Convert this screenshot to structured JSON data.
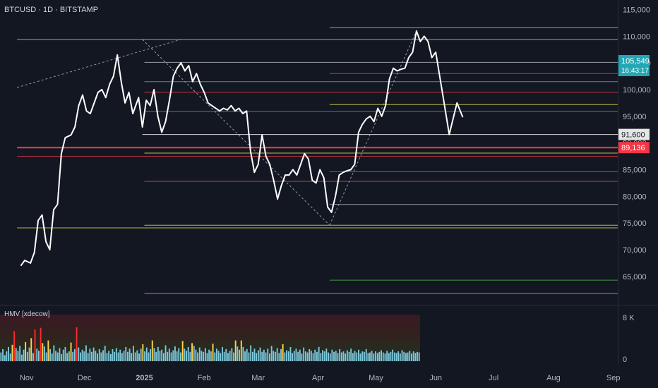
{
  "header": {
    "title": "BTCUSD · 1D · BITSTAMP"
  },
  "indicator": {
    "title": "HMV [xdecow]",
    "ticks": [
      "8 K",
      "0"
    ]
  },
  "colors": {
    "background": "#131722",
    "price_line": "#ffffff",
    "axis_text": "#b2b5be",
    "current_badge": "#22a7b5",
    "red": "#f23645",
    "teal": "#26a69a",
    "blue": "#4aa3d8",
    "yellow": "#d6dc4a",
    "green": "#4caf50",
    "purple": "#c77dff",
    "grey": "#9598a1",
    "vol_base": "#7fc7d9",
    "vol_yellow": "#ffd54f",
    "vol_red": "#ff2a2a"
  },
  "chart_data": {
    "type": "line",
    "title": "BTCUSD · 1D · BITSTAMP",
    "x_axis": {
      "ticks": [
        "Nov",
        "Dec",
        "2025",
        "Feb",
        "Mar",
        "Apr",
        "May",
        "Jun",
        "Jul",
        "Aug",
        "Sep"
      ]
    },
    "y_axis": {
      "ticks": [
        "115,000",
        "110,000",
        "105,000",
        "100,000",
        "95,000",
        "90,000",
        "85,000",
        "80,000",
        "75,000",
        "70,000",
        "65,000"
      ],
      "ylim": [
        61500,
        116200
      ]
    },
    "series": [
      {
        "values": [
          {
            "x": "2024-10-29",
            "y": 67000
          },
          {
            "x": "2024-10-31",
            "y": 68000
          },
          {
            "x": "2024-11-03",
            "y": 67500
          },
          {
            "x": "2024-11-05",
            "y": 69500
          },
          {
            "x": "2024-11-07",
            "y": 75500
          },
          {
            "x": "2024-11-09",
            "y": 76500
          },
          {
            "x": "2024-11-11",
            "y": 71500
          },
          {
            "x": "2024-11-13",
            "y": 70000
          },
          {
            "x": "2024-11-15",
            "y": 77500
          },
          {
            "x": "2024-11-17",
            "y": 78500
          },
          {
            "x": "2024-11-19",
            "y": 88000
          },
          {
            "x": "2024-11-21",
            "y": 91000
          },
          {
            "x": "2024-11-24",
            "y": 91500
          },
          {
            "x": "2024-11-26",
            "y": 93000
          },
          {
            "x": "2024-11-28",
            "y": 97000
          },
          {
            "x": "2024-11-30",
            "y": 99000
          },
          {
            "x": "2024-12-02",
            "y": 96000
          },
          {
            "x": "2024-12-04",
            "y": 95500
          },
          {
            "x": "2024-12-06",
            "y": 97500
          },
          {
            "x": "2024-12-08",
            "y": 99500
          },
          {
            "x": "2024-12-10",
            "y": 100000
          },
          {
            "x": "2024-12-12",
            "y": 98500
          },
          {
            "x": "2024-12-14",
            "y": 101000
          },
          {
            "x": "2024-12-16",
            "y": 102500
          },
          {
            "x": "2024-12-18",
            "y": 106500
          },
          {
            "x": "2024-12-20",
            "y": 101500
          },
          {
            "x": "2024-12-22",
            "y": 97500
          },
          {
            "x": "2024-12-24",
            "y": 99500
          },
          {
            "x": "2024-12-26",
            "y": 95500
          },
          {
            "x": "2024-12-29",
            "y": 98500
          },
          {
            "x": "2024-12-31",
            "y": 93000
          },
          {
            "x": "2025-01-02",
            "y": 98000
          },
          {
            "x": "2025-01-04",
            "y": 97000
          },
          {
            "x": "2025-01-06",
            "y": 100000
          },
          {
            "x": "2025-01-08",
            "y": 95000
          },
          {
            "x": "2025-01-10",
            "y": 92000
          },
          {
            "x": "2025-01-12",
            "y": 94000
          },
          {
            "x": "2025-01-14",
            "y": 98000
          },
          {
            "x": "2025-01-16",
            "y": 102500
          },
          {
            "x": "2025-01-18",
            "y": 104000
          },
          {
            "x": "2025-01-20",
            "y": 105000
          },
          {
            "x": "2025-01-22",
            "y": 103500
          },
          {
            "x": "2025-01-24",
            "y": 104500
          },
          {
            "x": "2025-01-26",
            "y": 101500
          },
          {
            "x": "2025-01-28",
            "y": 103000
          },
          {
            "x": "2025-01-30",
            "y": 101000
          },
          {
            "x": "2025-02-01",
            "y": 99500
          },
          {
            "x": "2025-02-03",
            "y": 97500
          },
          {
            "x": "2025-02-05",
            "y": 97000
          },
          {
            "x": "2025-02-07",
            "y": 96500
          },
          {
            "x": "2025-02-09",
            "y": 96000
          },
          {
            "x": "2025-02-11",
            "y": 96500
          },
          {
            "x": "2025-02-13",
            "y": 96200
          },
          {
            "x": "2025-02-15",
            "y": 97000
          },
          {
            "x": "2025-02-17",
            "y": 96000
          },
          {
            "x": "2025-02-19",
            "y": 96500
          },
          {
            "x": "2025-02-21",
            "y": 95500
          },
          {
            "x": "2025-02-23",
            "y": 96000
          },
          {
            "x": "2025-02-25",
            "y": 88500
          },
          {
            "x": "2025-02-27",
            "y": 84500
          },
          {
            "x": "2025-03-01",
            "y": 86000
          },
          {
            "x": "2025-03-03",
            "y": 91500
          },
          {
            "x": "2025-03-05",
            "y": 87500
          },
          {
            "x": "2025-03-07",
            "y": 86000
          },
          {
            "x": "2025-03-09",
            "y": 83000
          },
          {
            "x": "2025-03-11",
            "y": 79500
          },
          {
            "x": "2025-03-13",
            "y": 82000
          },
          {
            "x": "2025-03-15",
            "y": 84000
          },
          {
            "x": "2025-03-17",
            "y": 84000
          },
          {
            "x": "2025-03-19",
            "y": 85000
          },
          {
            "x": "2025-03-21",
            "y": 84000
          },
          {
            "x": "2025-03-23",
            "y": 86000
          },
          {
            "x": "2025-03-25",
            "y": 88000
          },
          {
            "x": "2025-03-27",
            "y": 87000
          },
          {
            "x": "2025-03-29",
            "y": 83000
          },
          {
            "x": "2025-03-31",
            "y": 82500
          },
          {
            "x": "2025-04-02",
            "y": 85000
          },
          {
            "x": "2025-04-04",
            "y": 83500
          },
          {
            "x": "2025-04-06",
            "y": 78000
          },
          {
            "x": "2025-04-08",
            "y": 77000
          },
          {
            "x": "2025-04-10",
            "y": 80000
          },
          {
            "x": "2025-04-12",
            "y": 84000
          },
          {
            "x": "2025-04-14",
            "y": 84500
          },
          {
            "x": "2025-04-16",
            "y": 84800
          },
          {
            "x": "2025-04-18",
            "y": 85000
          },
          {
            "x": "2025-04-20",
            "y": 86000
          },
          {
            "x": "2025-04-22",
            "y": 92000
          },
          {
            "x": "2025-04-24",
            "y": 93500
          },
          {
            "x": "2025-04-26",
            "y": 94500
          },
          {
            "x": "2025-04-28",
            "y": 95000
          },
          {
            "x": "2025-04-30",
            "y": 94000
          },
          {
            "x": "2025-05-02",
            "y": 96500
          },
          {
            "x": "2025-05-04",
            "y": 95000
          },
          {
            "x": "2025-05-06",
            "y": 97000
          },
          {
            "x": "2025-05-08",
            "y": 102000
          },
          {
            "x": "2025-05-10",
            "y": 104000
          },
          {
            "x": "2025-05-12",
            "y": 103500
          },
          {
            "x": "2025-05-14",
            "y": 103800
          },
          {
            "x": "2025-05-16",
            "y": 104000
          },
          {
            "x": "2025-05-18",
            "y": 106000
          },
          {
            "x": "2025-05-20",
            "y": 107000
          },
          {
            "x": "2025-05-22",
            "y": 111000
          },
          {
            "x": "2025-05-24",
            "y": 109000
          },
          {
            "x": "2025-05-26",
            "y": 110000
          },
          {
            "x": "2025-05-28",
            "y": 109000
          },
          {
            "x": "2025-05-30",
            "y": 106000
          },
          {
            "x": "2025-06-01",
            "y": 107000
          },
          {
            "x": "2025-06-06",
            "y": 96000
          },
          {
            "x": "2025-06-08",
            "y": 91600
          },
          {
            "x": "2025-06-12",
            "y": 97500
          },
          {
            "x": "2025-06-15",
            "y": 94800
          }
        ]
      }
    ],
    "current_price": {
      "value": "105,549",
      "countdown": "16:43:17"
    },
    "badges": [
      {
        "value": "91,600",
        "color": "#e6e6e6",
        "text_color": "#131722"
      },
      {
        "value": "89,136",
        "color": "#f23645",
        "text_color": "#ffffff"
      }
    ],
    "levels": [
      {
        "y": 111600,
        "color": "#b2b5be",
        "from": "2025-04-07"
      },
      {
        "y": 109400,
        "color": "#b2b5be",
        "from": "2024-10-27"
      },
      {
        "y": 105100,
        "color": "#b2b5be",
        "from": "2025-01-01"
      },
      {
        "y": 103000,
        "color": "#f23645",
        "from": "2025-04-07"
      },
      {
        "y": 101500,
        "color": "#4aa3d8",
        "from": "2025-01-01"
      },
      {
        "y": 99500,
        "color": "#f23645",
        "from": "2025-01-01"
      },
      {
        "y": 97200,
        "color": "#d6dc4a",
        "from": "2025-04-07"
      },
      {
        "y": 95900,
        "color": "#26a69a",
        "from": "2025-01-01"
      },
      {
        "y": 91600,
        "color": "#ffffff",
        "from": "2024-12-31"
      },
      {
        "y": 89136,
        "color": "#f23645",
        "from": "2024-10-27",
        "bold": true
      },
      {
        "y": 88100,
        "color": "#d6dc4a",
        "from": "2025-01-01"
      },
      {
        "y": 87500,
        "color": "#f23645",
        "from": "2024-10-27"
      },
      {
        "y": 84600,
        "color": "#f23645",
        "from": "2025-04-07"
      },
      {
        "y": 82800,
        "color": "#f23645",
        "from": "2025-01-01"
      },
      {
        "y": 78500,
        "color": "#b2b5be",
        "from": "2025-04-07"
      },
      {
        "y": 74600,
        "color": "#d6dc4a",
        "from": "2025-01-01"
      },
      {
        "y": 74100,
        "color": "#d6dc4a",
        "from": "2024-10-27"
      },
      {
        "y": 64300,
        "color": "#4caf50",
        "from": "2025-04-07"
      },
      {
        "y": 61800,
        "color": "#c77dff",
        "from": "2025-01-01"
      }
    ],
    "trendlines": [
      {
        "x1": "2024-10-27",
        "y1": 100400,
        "x2": "2025-01-20",
        "y2": 109400
      },
      {
        "x1": "2024-12-31",
        "y1": 109400,
        "x2": "2025-04-07",
        "y2": 74600
      },
      {
        "x1": "2025-04-07",
        "y1": 74600,
        "x2": "2025-05-22",
        "y2": 111000
      }
    ],
    "volume": {
      "ylim": [
        0,
        8000
      ],
      "values": [
        1600,
        2200,
        1100,
        1800,
        2600,
        1400,
        3000,
        5500,
        2400,
        1900,
        2800,
        1200,
        2100,
        3500,
        1700,
        2500,
        4200,
        1500,
        5800,
        2300,
        1900,
        6100,
        3300,
        2700,
        1600,
        3800,
        2200,
        1400,
        2900,
        1900,
        1600,
        2400,
        1300,
        2100,
        2600,
        1500,
        1800,
        3400,
        1700,
        2200,
        6200,
        2500,
        1600,
        2100,
        1800,
        2900,
        1500,
        2300,
        1700,
        2500,
        1900,
        1400,
        2200,
        1600,
        2000,
        2800,
        1500,
        1900,
        1300,
        2200,
        1700,
        2400,
        1600,
        2100,
        1500,
        1900,
        2600,
        1700,
        2300,
        1500,
        2800,
        1600,
        2000,
        1400,
        2300,
        3100,
        1800,
        2500,
        1600,
        2200,
        3800,
        2400,
        1700,
        2600,
        1900,
        2100,
        1500,
        2900,
        1700,
        2300,
        1600,
        2000,
        2700,
        1800,
        2400,
        1600,
        3700,
        2300,
        1900,
        2600,
        1700,
        3300,
        2800,
        2100,
        1600,
        2500,
        1900,
        1700,
        2400,
        1500,
        2100,
        1800,
        3200,
        1600,
        2300,
        1900,
        1500,
        2600,
        1700,
        2200,
        1500,
        1900,
        2400,
        1600,
        3800,
        2700,
        2100,
        3800,
        2600,
        1800,
        2200,
        1600,
        2900,
        1700,
        2300,
        1500,
        2000,
        2500,
        1700,
        2100,
        1600,
        2300,
        1400,
        2800,
        1900,
        1700,
        2400,
        1500,
        2200,
        3100,
        1600,
        2000,
        1800,
        2600,
        1500,
        1900,
        2300,
        1700,
        2100,
        1400,
        2500,
        1800,
        1600,
        2200,
        1900,
        1500,
        2100,
        1700,
        2600,
        1500,
        2000,
        1800,
        2300,
        1600,
        1400,
        2100,
        1700,
        1900,
        1500,
        2200,
        1600,
        1800,
        1400,
        2000,
        1700,
        2300,
        1500,
        1900,
        1600,
        2100,
        1400,
        1800,
        1700,
        2200,
        1500,
        1600,
        1900,
        1400,
        1800,
        1500,
        1700,
        2000,
        1600,
        1400,
        1900,
        1500,
        1700,
        2100,
        1600,
        1500,
        1800,
        1400,
        2000,
        1700,
        1500,
        1600,
        1900,
        1400,
        1800,
        1500,
        1700,
        1600
      ]
    }
  }
}
